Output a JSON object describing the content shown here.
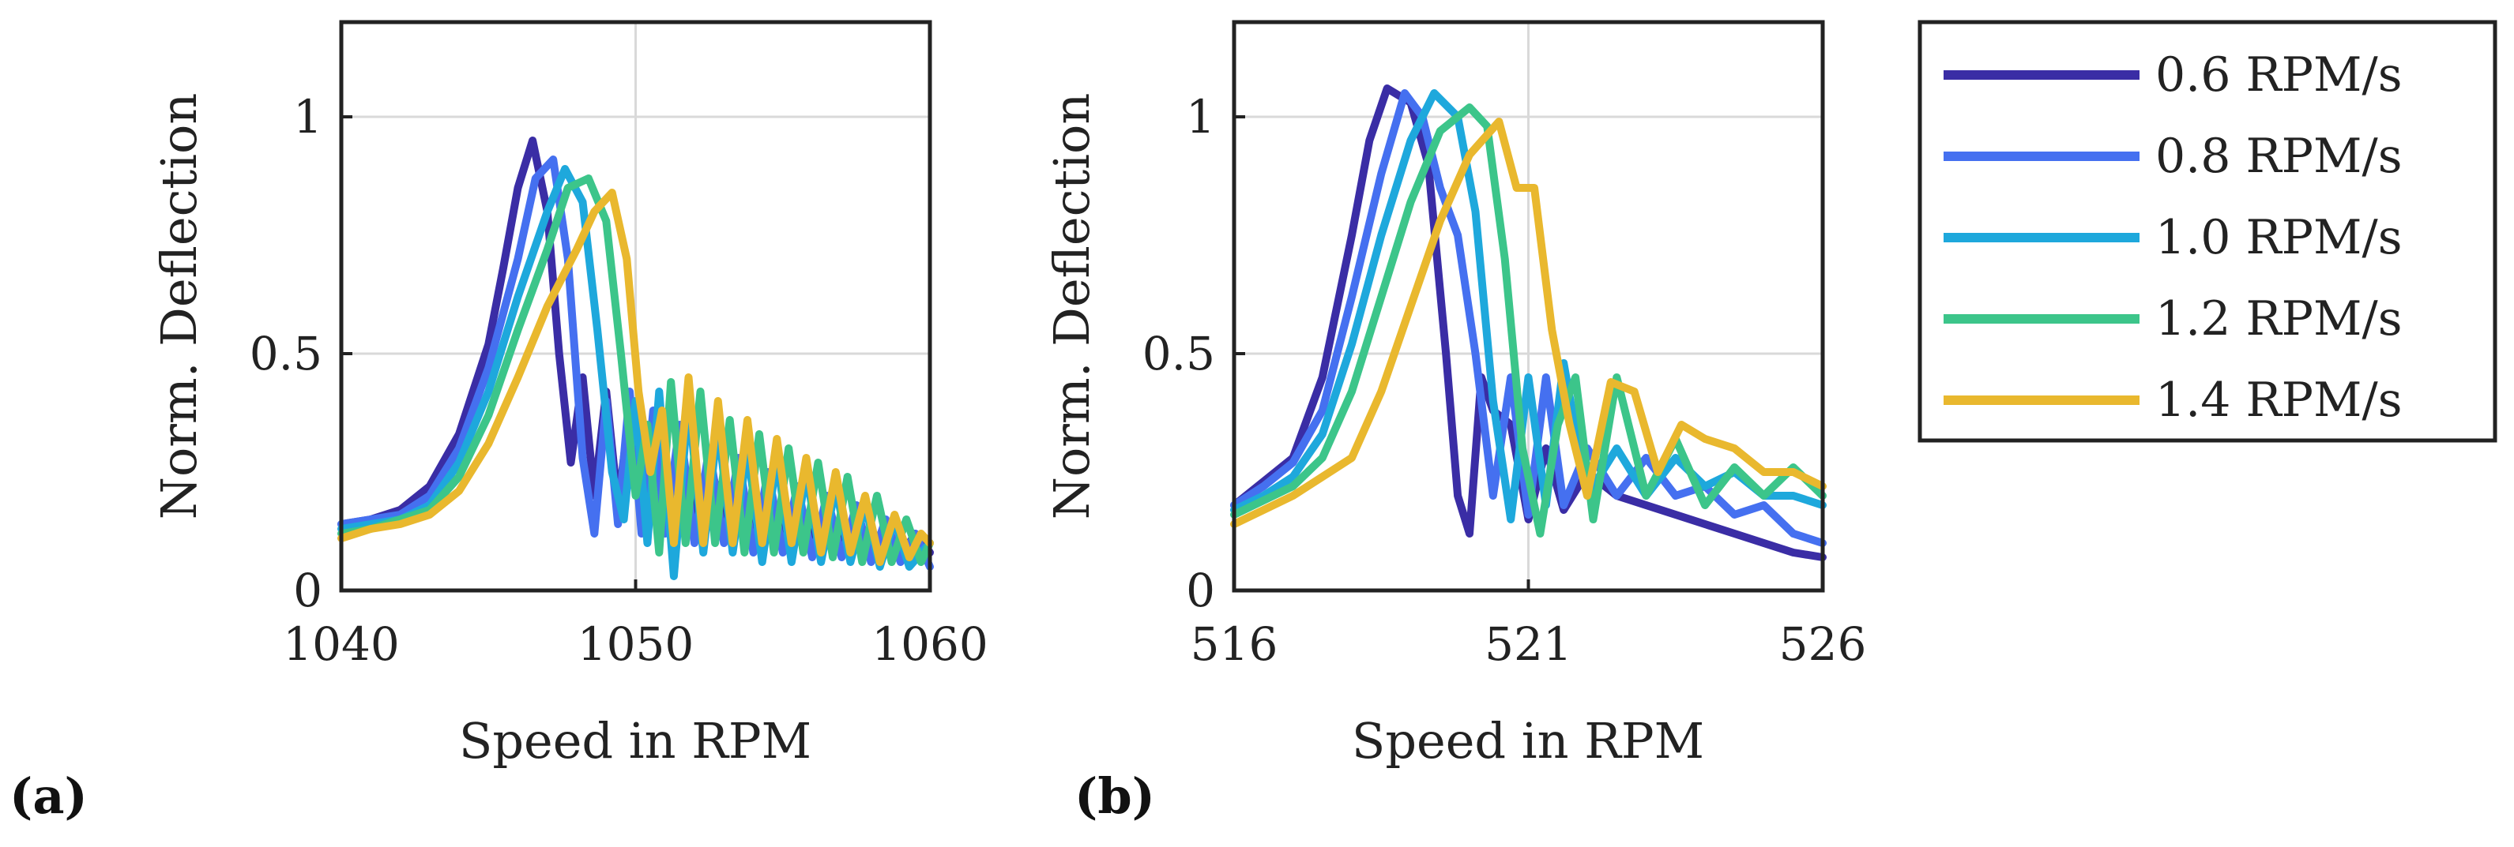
{
  "chart_data": [
    {
      "panel_label": "(a)",
      "type": "line",
      "xlabel": "Speed  in RPM",
      "ylabel": "Norm. Deflection",
      "xlim": [
        1040,
        1060
      ],
      "ylim": [
        0,
        1.2
      ],
      "xticks": [
        1040,
        1050,
        1060
      ],
      "xtick_labels": [
        "1040",
        "1050",
        "1060"
      ],
      "yticks": [
        0,
        0.5,
        1
      ],
      "ytick_labels": [
        "0",
        "0.5",
        "1"
      ],
      "grid": true,
      "series": [
        {
          "name": "0.6 RPM/s",
          "x": [
            1040,
            1041,
            1042,
            1043,
            1044,
            1045,
            1045.5,
            1046,
            1046.5,
            1047,
            1047.4,
            1047.8,
            1048.2,
            1048.6,
            1049,
            1049.4,
            1049.8,
            1050.2,
            1050.6,
            1051,
            1051.5,
            1052,
            1052.5,
            1053,
            1053.5,
            1054,
            1054.5,
            1055,
            1055.5,
            1056,
            1056.5,
            1057,
            1057.5,
            1058,
            1058.5,
            1059,
            1059.5,
            1060
          ],
          "y": [
            0.14,
            0.15,
            0.17,
            0.22,
            0.33,
            0.52,
            0.68,
            0.85,
            0.95,
            0.8,
            0.5,
            0.27,
            0.45,
            0.2,
            0.42,
            0.18,
            0.38,
            0.22,
            0.35,
            0.2,
            0.3,
            0.15,
            0.28,
            0.14,
            0.25,
            0.12,
            0.22,
            0.12,
            0.2,
            0.1,
            0.18,
            0.1,
            0.15,
            0.08,
            0.14,
            0.07,
            0.12,
            0.08
          ]
        },
        {
          "name": "0.8 RPM/s",
          "x": [
            1040,
            1041,
            1042,
            1043,
            1044,
            1045,
            1046,
            1046.6,
            1047.2,
            1047.7,
            1048.2,
            1048.6,
            1049,
            1049.4,
            1049.8,
            1050.2,
            1050.6,
            1051,
            1051.5,
            1052,
            1052.5,
            1053,
            1053.5,
            1054,
            1054.5,
            1055,
            1055.5,
            1056,
            1056.5,
            1057,
            1057.5,
            1058,
            1058.5,
            1059,
            1059.5,
            1060
          ],
          "y": [
            0.14,
            0.15,
            0.16,
            0.2,
            0.3,
            0.47,
            0.7,
            0.87,
            0.91,
            0.7,
            0.28,
            0.12,
            0.4,
            0.14,
            0.42,
            0.12,
            0.38,
            0.12,
            0.35,
            0.1,
            0.3,
            0.1,
            0.28,
            0.08,
            0.25,
            0.08,
            0.22,
            0.07,
            0.2,
            0.07,
            0.18,
            0.06,
            0.15,
            0.06,
            0.12,
            0.05
          ]
        },
        {
          "name": "1.0 RPM/s",
          "x": [
            1040,
            1041,
            1042,
            1043,
            1044,
            1045,
            1046,
            1047,
            1047.6,
            1048.2,
            1048.7,
            1049.2,
            1049.6,
            1050,
            1050.4,
            1050.8,
            1051.3,
            1051.8,
            1052.3,
            1052.8,
            1053.3,
            1053.8,
            1054.3,
            1054.8,
            1055.3,
            1055.8,
            1056.3,
            1056.8,
            1057.3,
            1057.8,
            1058.3,
            1058.8,
            1059.3,
            1060
          ],
          "y": [
            0.13,
            0.14,
            0.15,
            0.18,
            0.27,
            0.42,
            0.62,
            0.8,
            0.89,
            0.82,
            0.55,
            0.25,
            0.15,
            0.4,
            0.1,
            0.42,
            0.03,
            0.4,
            0.08,
            0.35,
            0.08,
            0.3,
            0.06,
            0.28,
            0.06,
            0.25,
            0.06,
            0.22,
            0.06,
            0.18,
            0.05,
            0.15,
            0.05,
            0.1
          ]
        },
        {
          "name": "1.2 RPM/s",
          "x": [
            1040,
            1041,
            1042,
            1043,
            1044,
            1045,
            1046,
            1047,
            1047.7,
            1048.4,
            1049,
            1049.5,
            1050,
            1050.4,
            1050.8,
            1051.2,
            1051.7,
            1052.2,
            1052.7,
            1053.2,
            1053.7,
            1054.2,
            1054.7,
            1055.2,
            1055.7,
            1056.2,
            1056.7,
            1057.2,
            1057.7,
            1058.2,
            1058.7,
            1059.2,
            1059.7,
            1060
          ],
          "y": [
            0.12,
            0.13,
            0.15,
            0.17,
            0.24,
            0.37,
            0.55,
            0.72,
            0.85,
            0.87,
            0.78,
            0.5,
            0.2,
            0.35,
            0.08,
            0.44,
            0.1,
            0.42,
            0.1,
            0.36,
            0.08,
            0.33,
            0.08,
            0.3,
            0.08,
            0.27,
            0.07,
            0.24,
            0.06,
            0.2,
            0.06,
            0.15,
            0.06,
            0.1
          ]
        },
        {
          "name": "1.4 RPM/s",
          "x": [
            1040,
            1041,
            1042,
            1043,
            1044,
            1045,
            1046,
            1047,
            1048,
            1048.6,
            1049.2,
            1049.7,
            1050.1,
            1050.5,
            1050.9,
            1051.3,
            1051.8,
            1052.3,
            1052.8,
            1053.3,
            1053.8,
            1054.3,
            1054.8,
            1055.3,
            1055.8,
            1056.3,
            1056.8,
            1057.3,
            1057.8,
            1058.3,
            1058.8,
            1059.3,
            1059.7,
            1060
          ],
          "y": [
            0.11,
            0.13,
            0.14,
            0.16,
            0.21,
            0.31,
            0.45,
            0.6,
            0.72,
            0.8,
            0.84,
            0.7,
            0.42,
            0.25,
            0.38,
            0.1,
            0.45,
            0.1,
            0.4,
            0.1,
            0.36,
            0.1,
            0.32,
            0.1,
            0.28,
            0.08,
            0.25,
            0.08,
            0.2,
            0.06,
            0.16,
            0.07,
            0.12,
            0.1
          ]
        }
      ]
    },
    {
      "panel_label": "(b)",
      "type": "line",
      "xlabel": "Speed  in RPM",
      "ylabel": "Norm. Deflection",
      "xlim": [
        516,
        526
      ],
      "ylim": [
        0,
        1.2
      ],
      "xticks": [
        516,
        521,
        526
      ],
      "xtick_labels": [
        "516",
        "521",
        "526"
      ],
      "yticks": [
        0,
        0.5,
        1
      ],
      "ytick_labels": [
        "0",
        "0.5",
        "1"
      ],
      "grid": true,
      "series": [
        {
          "name": "0.6 RPM/s",
          "x": [
            516,
            516.5,
            517,
            517.5,
            518,
            518.3,
            518.6,
            519,
            519.3,
            519.6,
            519.8,
            520,
            520.2,
            520.4,
            520.7,
            521,
            521.3,
            521.6,
            522,
            522.5,
            523,
            523.5,
            524,
            524.5,
            525,
            525.5,
            526
          ],
          "y": [
            0.18,
            0.23,
            0.28,
            0.45,
            0.75,
            0.95,
            1.06,
            1.03,
            0.9,
            0.5,
            0.2,
            0.12,
            0.45,
            0.38,
            0.35,
            0.15,
            0.3,
            0.17,
            0.25,
            0.2,
            0.18,
            0.16,
            0.14,
            0.12,
            0.1,
            0.08,
            0.07
          ]
        },
        {
          "name": "0.8 RPM/s",
          "x": [
            516,
            516.5,
            517,
            517.5,
            518,
            518.5,
            518.9,
            519.2,
            519.5,
            519.8,
            520.1,
            520.4,
            520.7,
            521,
            521.3,
            521.6,
            522,
            522.5,
            523,
            523.5,
            524,
            524.5,
            525,
            525.5,
            526
          ],
          "y": [
            0.18,
            0.22,
            0.27,
            0.38,
            0.62,
            0.88,
            1.05,
            1.0,
            0.85,
            0.75,
            0.5,
            0.2,
            0.45,
            0.16,
            0.45,
            0.18,
            0.3,
            0.2,
            0.28,
            0.2,
            0.22,
            0.16,
            0.18,
            0.12,
            0.1
          ]
        },
        {
          "name": "1.0 RPM/s",
          "x": [
            516,
            516.5,
            517,
            517.5,
            518,
            518.5,
            519,
            519.4,
            519.8,
            520.1,
            520.4,
            520.7,
            521,
            521.3,
            521.6,
            522,
            522.5,
            523,
            523.5,
            524,
            524.5,
            525,
            525.5,
            526
          ],
          "y": [
            0.17,
            0.2,
            0.24,
            0.33,
            0.52,
            0.75,
            0.95,
            1.05,
            1.0,
            0.8,
            0.4,
            0.15,
            0.45,
            0.18,
            0.48,
            0.2,
            0.3,
            0.2,
            0.28,
            0.22,
            0.25,
            0.2,
            0.2,
            0.18
          ]
        },
        {
          "name": "1.2 RPM/s",
          "x": [
            516,
            516.5,
            517,
            517.5,
            518,
            518.5,
            519,
            519.5,
            520,
            520.3,
            520.6,
            520.9,
            521.2,
            521.5,
            521.8,
            522.1,
            522.5,
            523,
            523.5,
            524,
            524.5,
            525,
            525.5,
            526
          ],
          "y": [
            0.16,
            0.19,
            0.22,
            0.28,
            0.42,
            0.62,
            0.82,
            0.97,
            1.02,
            0.98,
            0.7,
            0.3,
            0.12,
            0.35,
            0.45,
            0.15,
            0.45,
            0.2,
            0.32,
            0.18,
            0.26,
            0.2,
            0.26,
            0.2
          ]
        },
        {
          "name": "1.4 RPM/s",
          "x": [
            516,
            516.5,
            517,
            517.5,
            518,
            518.5,
            519,
            519.5,
            520,
            520.5,
            520.8,
            521.1,
            521.4,
            521.7,
            522,
            522.4,
            522.8,
            523.2,
            523.6,
            524,
            524.5,
            525,
            525.5,
            526
          ],
          "y": [
            0.14,
            0.17,
            0.2,
            0.24,
            0.28,
            0.42,
            0.6,
            0.78,
            0.92,
            0.99,
            0.85,
            0.85,
            0.55,
            0.35,
            0.2,
            0.44,
            0.42,
            0.25,
            0.35,
            0.32,
            0.3,
            0.25,
            0.25,
            0.22
          ]
        }
      ]
    }
  ],
  "legend": {
    "placement": "right",
    "entries": [
      {
        "label": "0.6 RPM/s",
        "color": "#3a2da5"
      },
      {
        "label": "0.8 RPM/s",
        "color": "#4570f0"
      },
      {
        "label": "1.0 RPM/s",
        "color": "#1ea8dc"
      },
      {
        "label": "1.2 RPM/s",
        "color": "#3cc58a"
      },
      {
        "label": "1.4 RPM/s",
        "color": "#e9b82e"
      }
    ]
  }
}
